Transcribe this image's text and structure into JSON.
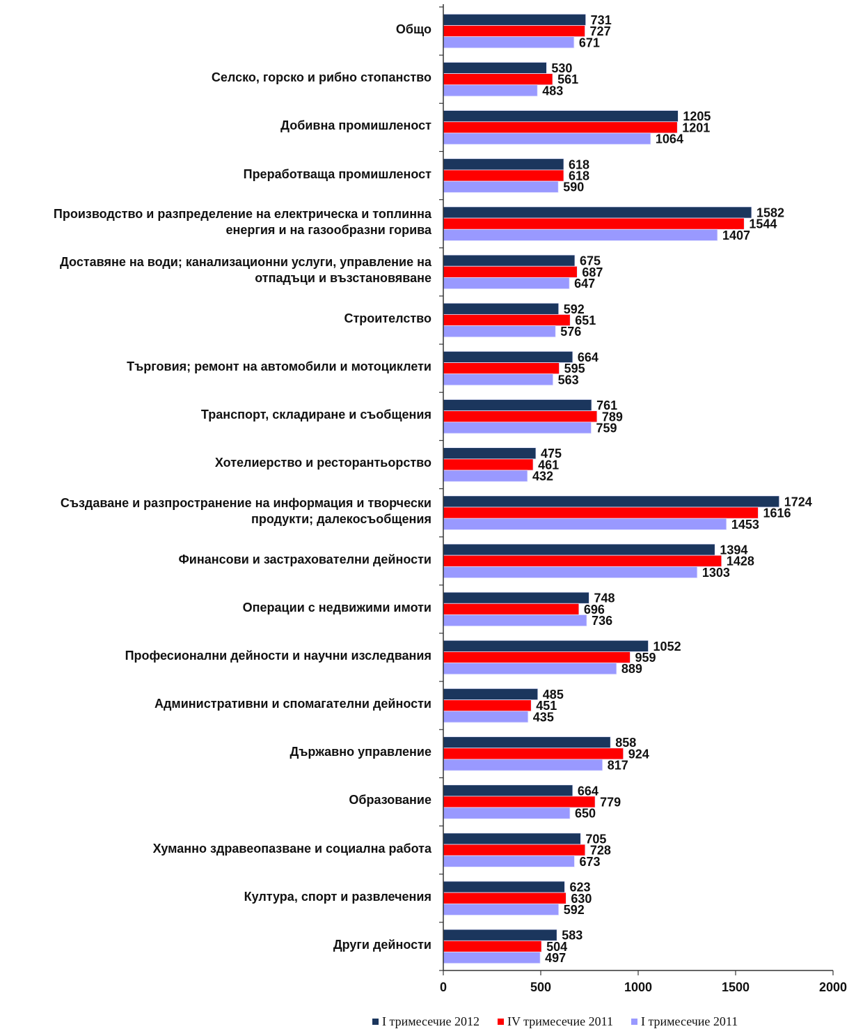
{
  "chart_data": {
    "type": "bar",
    "orientation": "horizontal",
    "title": "",
    "xlabel": "",
    "ylabel": "",
    "xlim": [
      0,
      2000
    ],
    "x_ticks": [
      "0",
      "500",
      "1000",
      "1500",
      "2000"
    ],
    "grid": false,
    "legend_position": "bottom",
    "categories": [
      "Общо",
      "Селско, горско и рибно стопанство",
      "Добивна промишленост",
      "Преработваща промишленост",
      "Производство и разпределение на електрическа и топлинна\nенергия и на газообразни горива",
      "Доставяне на води; канализационни услуги, управление на\nотпадъци и възстановяване",
      "Строителство",
      "Търговия; ремонт на автомобили и мотоциклети",
      "Транспорт, складиране и съобщения",
      "Хотелиерство и ресторантьорство",
      "Създаване и разпространение на информация и творчески\nпродукти; далекосъобщения",
      "Финансови и застрахователни дейности",
      "Операции с недвижими имоти",
      "Професионални дейности и научни изследвания",
      "Административни и спомагателни дейности",
      "Държавно управление",
      "Образование",
      "Хуманно здравеопазване и социална работа",
      "Култура, спорт и развлечения",
      "Други дейности"
    ],
    "series": [
      {
        "name": "I тримесечие 2012",
        "color": "#1b365d",
        "values": [
          731,
          530,
          1205,
          618,
          1582,
          675,
          592,
          664,
          761,
          475,
          1724,
          1394,
          748,
          1052,
          485,
          858,
          664,
          705,
          623,
          583
        ]
      },
      {
        "name": "IV тримесечие 2011",
        "color": "#ff0000",
        "values": [
          727,
          561,
          1201,
          618,
          1544,
          687,
          651,
          595,
          789,
          461,
          1616,
          1428,
          696,
          959,
          451,
          924,
          779,
          728,
          630,
          504
        ]
      },
      {
        "name": "I тримесечие 2011",
        "color": "#9999ff",
        "values": [
          671,
          483,
          1064,
          590,
          1407,
          647,
          576,
          563,
          759,
          432,
          1453,
          1303,
          736,
          889,
          435,
          817,
          650,
          673,
          592,
          497
        ]
      }
    ]
  }
}
